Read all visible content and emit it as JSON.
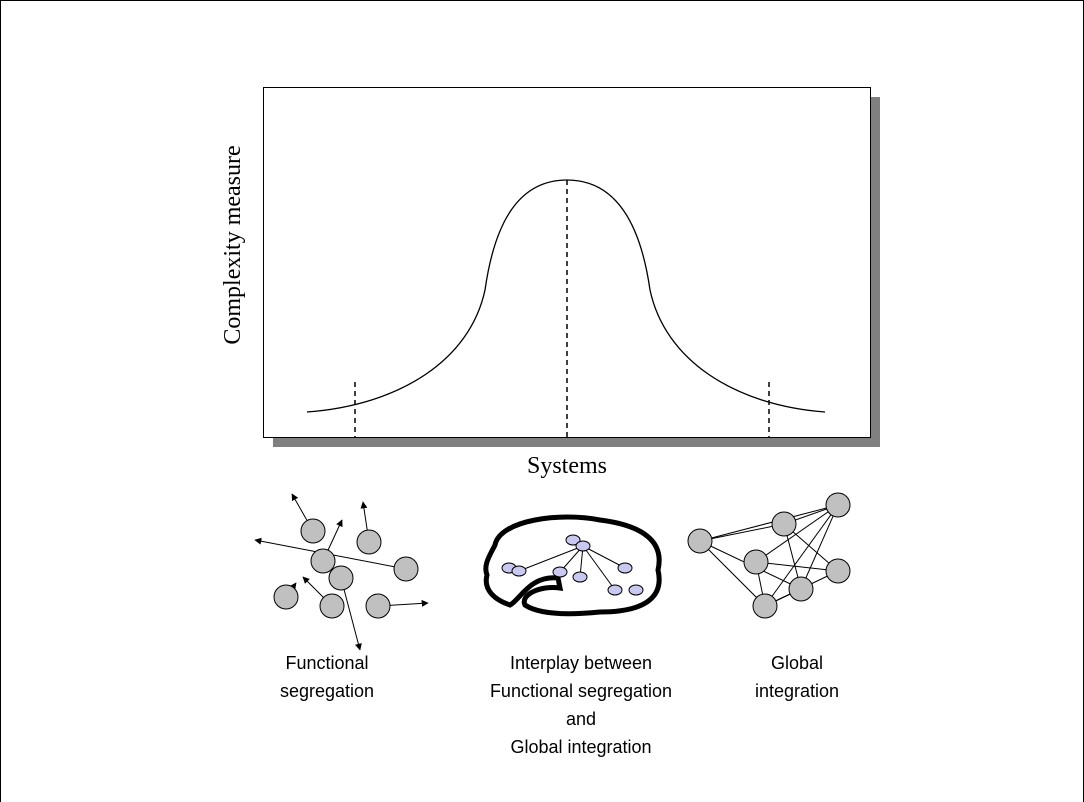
{
  "axes": {
    "y_label": "Complexity measure",
    "x_label": "Systems"
  },
  "panels": [
    {
      "label_lines": [
        "Functional",
        "segregation"
      ]
    },
    {
      "label_lines": [
        "Interplay between",
        "Functional segregation",
        "and",
        "Global integration"
      ]
    },
    {
      "label_lines": [
        "Global",
        "integration"
      ]
    }
  ]
}
